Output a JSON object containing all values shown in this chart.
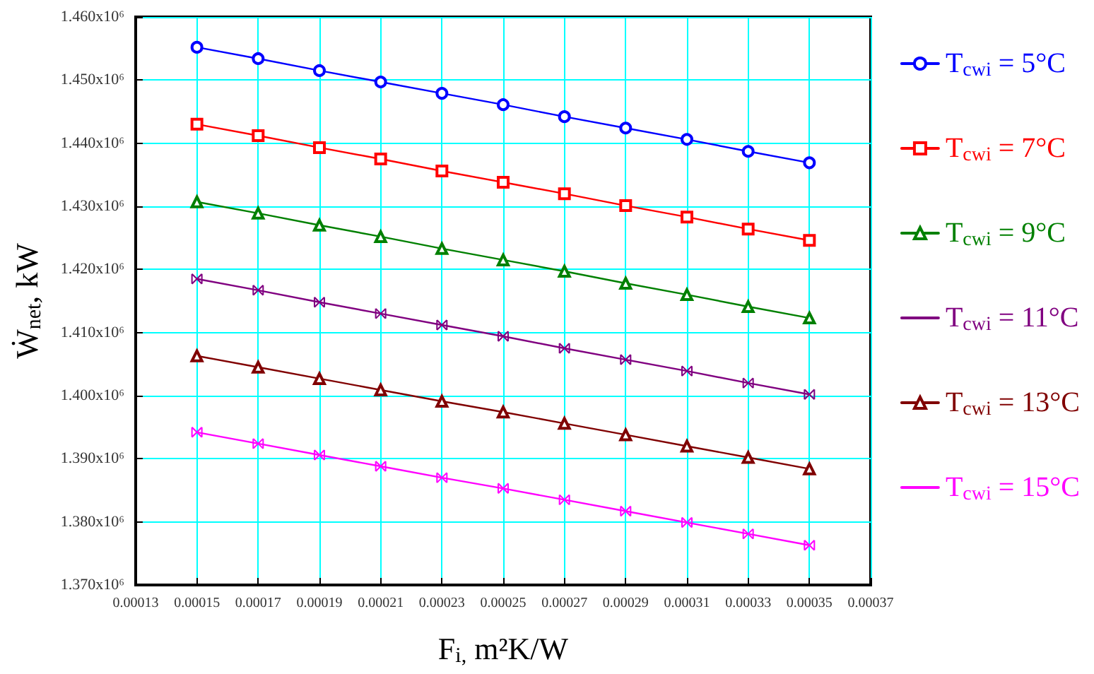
{
  "chart_data": {
    "type": "line",
    "xlabel": "F$_{i,}$ m²K/W",
    "ylabel": "Ẇ$_{net}$, kW",
    "x": [
      0.00015,
      0.00017,
      0.00019,
      0.00021,
      0.00023,
      0.00025,
      0.00027,
      0.00029,
      0.00031,
      0.00033,
      0.00035
    ],
    "xlim": [
      0.00013,
      0.00037
    ],
    "xticks": [
      0.00013,
      0.00015,
      0.00017,
      0.00019,
      0.00021,
      0.00023,
      0.00025,
      0.00027,
      0.00029,
      0.00031,
      0.00033,
      0.00035,
      0.00037
    ],
    "ylim": [
      1370000,
      1460000
    ],
    "yticks": [
      {
        "value": 1370000,
        "label": "1.370x10⁶"
      },
      {
        "value": 1380000,
        "label": "1.380x10⁶"
      },
      {
        "value": 1390000,
        "label": "1.390x10⁶"
      },
      {
        "value": 1400000,
        "label": "1.400x10⁶"
      },
      {
        "value": 1410000,
        "label": "1.410x10⁶"
      },
      {
        "value": 1420000,
        "label": "1.420x10⁶"
      },
      {
        "value": 1430000,
        "label": "1.430x10⁶"
      },
      {
        "value": 1440000,
        "label": "1.440x10⁶"
      },
      {
        "value": 1450000,
        "label": "1.450x10⁶"
      },
      {
        "value": 1460000,
        "label": "1.460x10⁶"
      }
    ],
    "grid": true,
    "legend": "right",
    "line_style": "solid",
    "series": [
      {
        "name": "T$_{cwi}$ = 5°C",
        "color": "#0000ff",
        "marker": "circle",
        "values": [
          1455200,
          1453400,
          1451500,
          1449700,
          1447900,
          1446100,
          1444200,
          1442400,
          1440600,
          1438700,
          1436900
        ]
      },
      {
        "name": "T$_{cwi}$ = 7°C",
        "color": "#ff0000",
        "marker": "square",
        "values": [
          1443000,
          1441200,
          1439300,
          1437500,
          1435600,
          1433800,
          1432000,
          1430100,
          1428300,
          1426400,
          1424600
        ]
      },
      {
        "name": "T$_{cwi}$ = 9°C",
        "color": "#008000",
        "marker": "triangle",
        "values": [
          1430700,
          1428900,
          1427000,
          1425200,
          1423300,
          1421500,
          1419700,
          1417800,
          1416000,
          1414100,
          1412300
        ]
      },
      {
        "name": "T$_{cwi}$ = 11°C",
        "color": "#800080",
        "marker": "cross",
        "values": [
          1418500,
          1416700,
          1414800,
          1413000,
          1411200,
          1409400,
          1407500,
          1405700,
          1403900,
          1402000,
          1400200
        ]
      },
      {
        "name": "T$_{cwi}$ = 13°C",
        "color": "#800000",
        "marker": "triangle",
        "values": [
          1406300,
          1404500,
          1402700,
          1400900,
          1399100,
          1397400,
          1395600,
          1393800,
          1392000,
          1390200,
          1388400
        ]
      },
      {
        "name": "T$_{cwi}$ = 15°C",
        "color": "#ff00ff",
        "marker": "cross",
        "values": [
          1394200,
          1392400,
          1390600,
          1388800,
          1387000,
          1385300,
          1383500,
          1381700,
          1379900,
          1378100,
          1376300
        ]
      }
    ]
  }
}
